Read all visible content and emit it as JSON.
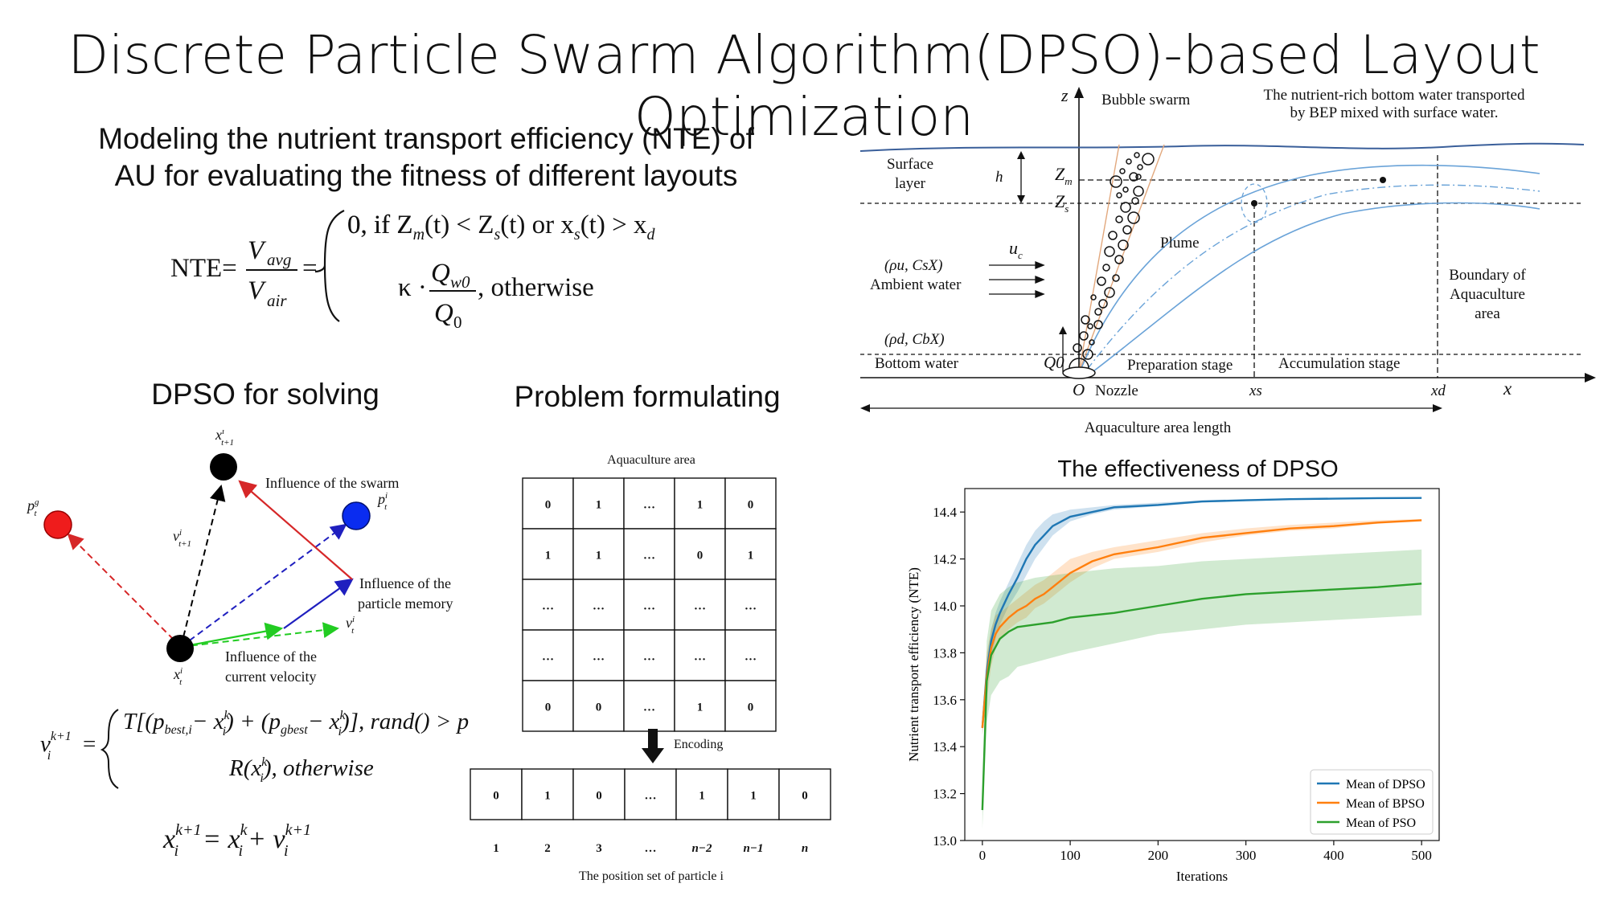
{
  "slide": {
    "title": "Discrete Particle Swarm Algorithm(DPSO)-based Layout Optimization",
    "nte_heading_line1": "Modeling the nutrient transport efficiency (NTE) of",
    "nte_heading_line2": "AU for evaluating the fitness of different layouts",
    "dpso_heading": "DPSO for solving",
    "problem_heading": "Problem formulating",
    "effect_heading": "The effectiveness of DPSO"
  },
  "nte_formula": {
    "lhs": "NTE=",
    "num": "V",
    "num_sub": "avg",
    "den": "V",
    "den_sub": "air",
    "case1": "0,  if Z",
    "case1_m": "m",
    "case1_mid": "(t) < Z",
    "case1_s": "s",
    "case1_mid2": "(t) or x",
    "case1_s2": "s",
    "case1_end": "(t) > x",
    "case1_d": "d",
    "case2_kappa": "κ ·",
    "case2_num": "Q",
    "case2_num_sub": "w0",
    "case2_den": "Q",
    "case2_den_sub": "0",
    "case2_end": ", otherwise"
  },
  "schematic": {
    "z_axis": "z",
    "x_axis": "x",
    "bubble_swarm": "Bubble swarm",
    "transport_note_1": "The nutrient-rich bottom water transported",
    "transport_note_2": "by BEP mixed with surface water.",
    "surface_layer_1": "Surface",
    "surface_layer_2": "layer",
    "h": "h",
    "zm": "Z",
    "zm_sub": "m",
    "zs": "Z",
    "zs_sub": "s",
    "uc": "u",
    "uc_sub": "c",
    "plume": "Plume",
    "ambient_params": "(ρu, CsX)",
    "ambient_water": "Ambient water",
    "bottom_params": "(ρd, CbX)",
    "bottom_water": "Bottom water",
    "q0": "Q0",
    "origin": "O",
    "nozzle": "Nozzle",
    "prep_stage": "Preparation stage",
    "accum_stage": "Accumulation stage",
    "xs": "xs",
    "xd": "xd",
    "boundary_1": "Boundary of",
    "boundary_2": "Aquaculture",
    "boundary_3": "area",
    "length": "Aquaculture area length"
  },
  "dpso_diagram": {
    "x_next": "x",
    "x_next_sup": "i",
    "x_next_sub": "t+1",
    "p_g": "p",
    "p_g_sup": "g",
    "p_g_sub": "t",
    "p_i": "p",
    "p_i_sup": "i",
    "p_i_sub": "t",
    "v_next": "v",
    "v_next_sup": "i",
    "v_next_sub": "t+1",
    "v_t": "v",
    "v_t_sup": "i",
    "v_t_sub": "t",
    "x_t": "x",
    "x_t_sup": "i",
    "x_t_sub": "t",
    "swarm_influence": "Influence of the swarm",
    "memory_1": "Influence of the",
    "memory_2": "particle memory",
    "velocity_1": "Influence of the",
    "velocity_2": "current velocity",
    "colors": {
      "swarm": "#d62728",
      "memory": "#1f1fbf",
      "velocity": "#22cc22",
      "own": "#000000"
    }
  },
  "update_formula": {
    "v": "v",
    "v_sub": "i",
    "v_sup": "k+1",
    "case1": "T[(p",
    "case1_best": "best,i",
    "case1_minus": "− x",
    "case1_k": "k",
    "case1_i": "i",
    "case1_plus": ") + (p",
    "case1_gbest": "gbest",
    "case1_close": ")],  rand() > p",
    "case2": "R(x",
    "case2_end": "),  otherwise",
    "pos_lhs": "x",
    "pos_rhs": "= x",
    "pos_plus": "+ v"
  },
  "grid": {
    "area_label": "Aquaculture area",
    "rows": [
      [
        "0",
        "1",
        "…",
        "1",
        "0"
      ],
      [
        "1",
        "1",
        "…",
        "0",
        "1"
      ],
      [
        "…",
        "…",
        "…",
        "…",
        "…"
      ],
      [
        "…",
        "…",
        "…",
        "…",
        "…"
      ],
      [
        "0",
        "0",
        "…",
        "1",
        "0"
      ]
    ],
    "encoding_label": "Encoding",
    "encoded": [
      "0",
      "1",
      "0",
      "…",
      "1",
      "1",
      "0"
    ],
    "indices": [
      "1",
      "2",
      "3",
      "…",
      "n−2",
      "n−1",
      "n"
    ],
    "position_label": "The position set of particle i"
  },
  "chart_data": {
    "type": "line",
    "title": "The effectiveness of DPSO",
    "xlabel": "Iterations",
    "ylabel": "Nutrient transport efficiency (NTE)",
    "xlim": [
      -20,
      520
    ],
    "ylim": [
      13.0,
      14.5
    ],
    "xticks": [
      0,
      100,
      200,
      300,
      400,
      500
    ],
    "yticks": [
      13.0,
      13.2,
      13.4,
      13.6,
      13.8,
      14.0,
      14.2,
      14.4
    ],
    "legend_position": "lower-right",
    "series": [
      {
        "name": "Mean of DPSO",
        "color": "#1f77b4",
        "x": [
          0,
          5,
          10,
          15,
          20,
          30,
          40,
          50,
          60,
          70,
          80,
          100,
          125,
          150,
          200,
          250,
          300,
          350,
          400,
          450,
          500
        ],
        "y": [
          13.48,
          13.72,
          13.85,
          13.92,
          13.97,
          14.05,
          14.12,
          14.2,
          14.26,
          14.3,
          14.34,
          14.38,
          14.4,
          14.42,
          14.43,
          14.445,
          14.45,
          14.455,
          14.457,
          14.459,
          14.46
        ],
        "lower": [
          13.45,
          13.65,
          13.78,
          13.86,
          13.92,
          14.0,
          14.06,
          14.13,
          14.2,
          14.25,
          14.3,
          14.36,
          14.39,
          14.41,
          14.425,
          14.44,
          14.447,
          14.452,
          14.455,
          14.457,
          14.459
        ],
        "upper": [
          13.52,
          13.78,
          13.9,
          13.97,
          14.02,
          14.1,
          14.18,
          14.26,
          14.32,
          14.36,
          14.39,
          14.41,
          14.42,
          14.43,
          14.44,
          14.45,
          14.455,
          14.458,
          14.46,
          14.462,
          14.463
        ]
      },
      {
        "name": "Mean of BPSO",
        "color": "#ff7f0e",
        "x": [
          0,
          5,
          10,
          15,
          20,
          30,
          40,
          50,
          60,
          70,
          80,
          100,
          125,
          150,
          200,
          250,
          300,
          350,
          400,
          450,
          500
        ],
        "y": [
          13.48,
          13.7,
          13.82,
          13.88,
          13.91,
          13.95,
          13.98,
          14.0,
          14.03,
          14.05,
          14.08,
          14.14,
          14.19,
          14.22,
          14.25,
          14.29,
          14.31,
          14.33,
          14.34,
          14.355,
          14.365
        ],
        "lower": [
          13.45,
          13.6,
          13.74,
          13.82,
          13.86,
          13.9,
          13.93,
          13.95,
          13.99,
          14.01,
          14.04,
          14.1,
          14.16,
          14.2,
          14.23,
          14.27,
          14.3,
          14.32,
          14.33,
          14.35,
          14.36
        ],
        "upper": [
          13.52,
          13.8,
          13.9,
          13.96,
          13.97,
          14.0,
          14.03,
          14.06,
          14.09,
          14.11,
          14.14,
          14.2,
          14.23,
          14.25,
          14.28,
          14.31,
          14.33,
          14.345,
          14.355,
          14.365,
          14.37
        ]
      },
      {
        "name": "Mean of PSO",
        "color": "#2ca02c",
        "x": [
          0,
          5,
          10,
          20,
          30,
          40,
          60,
          80,
          100,
          150,
          200,
          250,
          300,
          350,
          400,
          450,
          500
        ],
        "y": [
          13.13,
          13.68,
          13.79,
          13.86,
          13.89,
          13.91,
          13.92,
          13.93,
          13.95,
          13.97,
          14.0,
          14.03,
          14.05,
          14.06,
          14.07,
          14.08,
          14.095
        ],
        "lower": [
          13.05,
          13.5,
          13.62,
          13.68,
          13.7,
          13.74,
          13.76,
          13.78,
          13.8,
          13.84,
          13.88,
          13.9,
          13.92,
          13.93,
          13.94,
          13.95,
          13.96
        ],
        "upper": [
          13.2,
          13.85,
          13.98,
          14.05,
          14.08,
          14.1,
          14.12,
          14.13,
          14.14,
          14.16,
          14.17,
          14.19,
          14.2,
          14.21,
          14.22,
          14.23,
          14.24
        ]
      }
    ]
  }
}
